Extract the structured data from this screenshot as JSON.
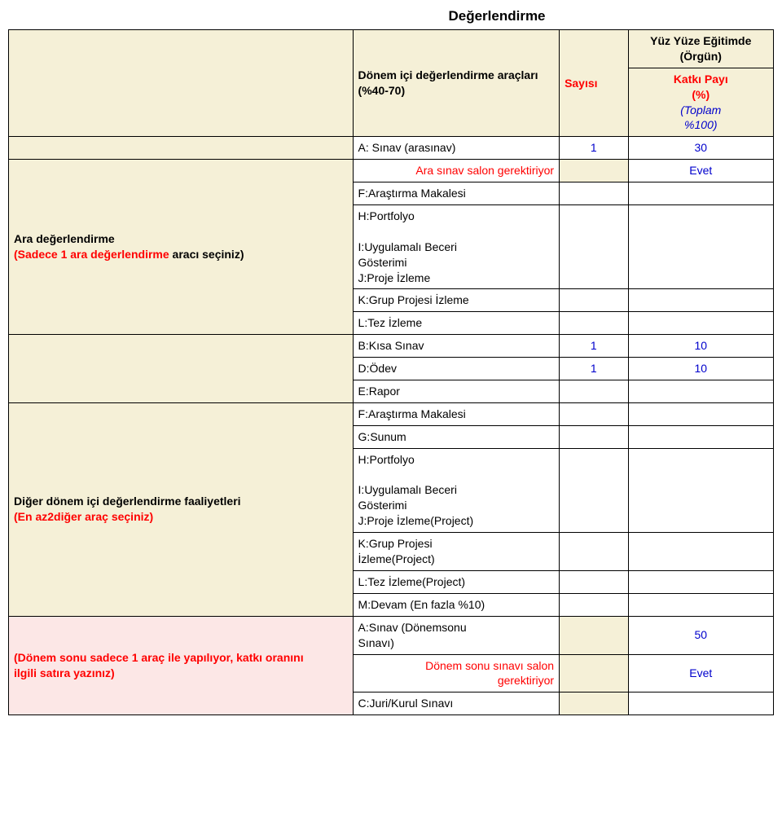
{
  "page_title": "Değerlendirme",
  "header": {
    "tools_label": "Dönem içi değerlendirme araçları (%40-70)",
    "count_label": "Sayısı",
    "f2f_line1": "Yüz Yüze Eğitimde",
    "f2f_line2": "(Örgün)",
    "katki_line1": "Katkı Payı",
    "katki_line2": "(%)",
    "katki_line3": "(Toplam",
    "katki_line4": "%100)"
  },
  "row_a": {
    "label": "A: Sınav (arasınav)",
    "count": "1",
    "share": "30"
  },
  "ara_needs_room": "Ara sınav salon gerektiriyor",
  "evet": "Evet",
  "f_article": "F:Araştırma Makalesi",
  "left_block1": {
    "line1": "Ara değerlendirme",
    "line2_a": "(Sadece 1 ara değerlendirme ",
    "line2_b": "aracı seçiniz)"
  },
  "h_portfolio": "H:Portfolyo",
  "i_line1": "I:Uygulamalı Beceri",
  "i_line2": "Gösterimi",
  "j_proje": "J:Proje İzleme",
  "k_grup": "K:Grup Projesi İzleme",
  "l_tez": "L:Tez İzleme",
  "row_b": {
    "label": "B:Kısa Sınav",
    "count": "1",
    "share": "10"
  },
  "row_d": {
    "label": "D:Ödev",
    "count": "1",
    "share": "10"
  },
  "row_e": {
    "label": "E:Rapor"
  },
  "g_sunum": "G:Sunum",
  "left_block2": {
    "line1": "Diğer dönem içi değerlendirme faaliyetleri",
    "line2": "(En az2diğer araç seçiniz)"
  },
  "j_proje_proj": "J:Proje İzleme(Project)",
  "k_grup_line1": "K:Grup Projesi",
  "k_grup_line2": "İzleme(Project)",
  "l_tez_proj": "L:Tez İzleme(Project)",
  "m_devam": "M:Devam (En fazla %10)",
  "left_block3": {
    "line1": "(Dönem sonu sadece 1 araç ile yapılıyor, katkı oranını",
    "line2": "ilgili satıra yazınız)"
  },
  "a_final_line1": "A:Sınav (Dönemsonu",
  "a_final_line2": "Sınavı)",
  "final_share": "50",
  "final_needs_room_l1": "Dönem sonu sınavı salon",
  "final_needs_room_l2": "gerektiriyor",
  "c_juri": "C:Juri/Kurul Sınavı",
  "colors": {
    "cream": "#f5f0d7",
    "pink": "#fce7e6",
    "border": "#000000",
    "red": "#ff0000",
    "blue": "#0000cc"
  }
}
